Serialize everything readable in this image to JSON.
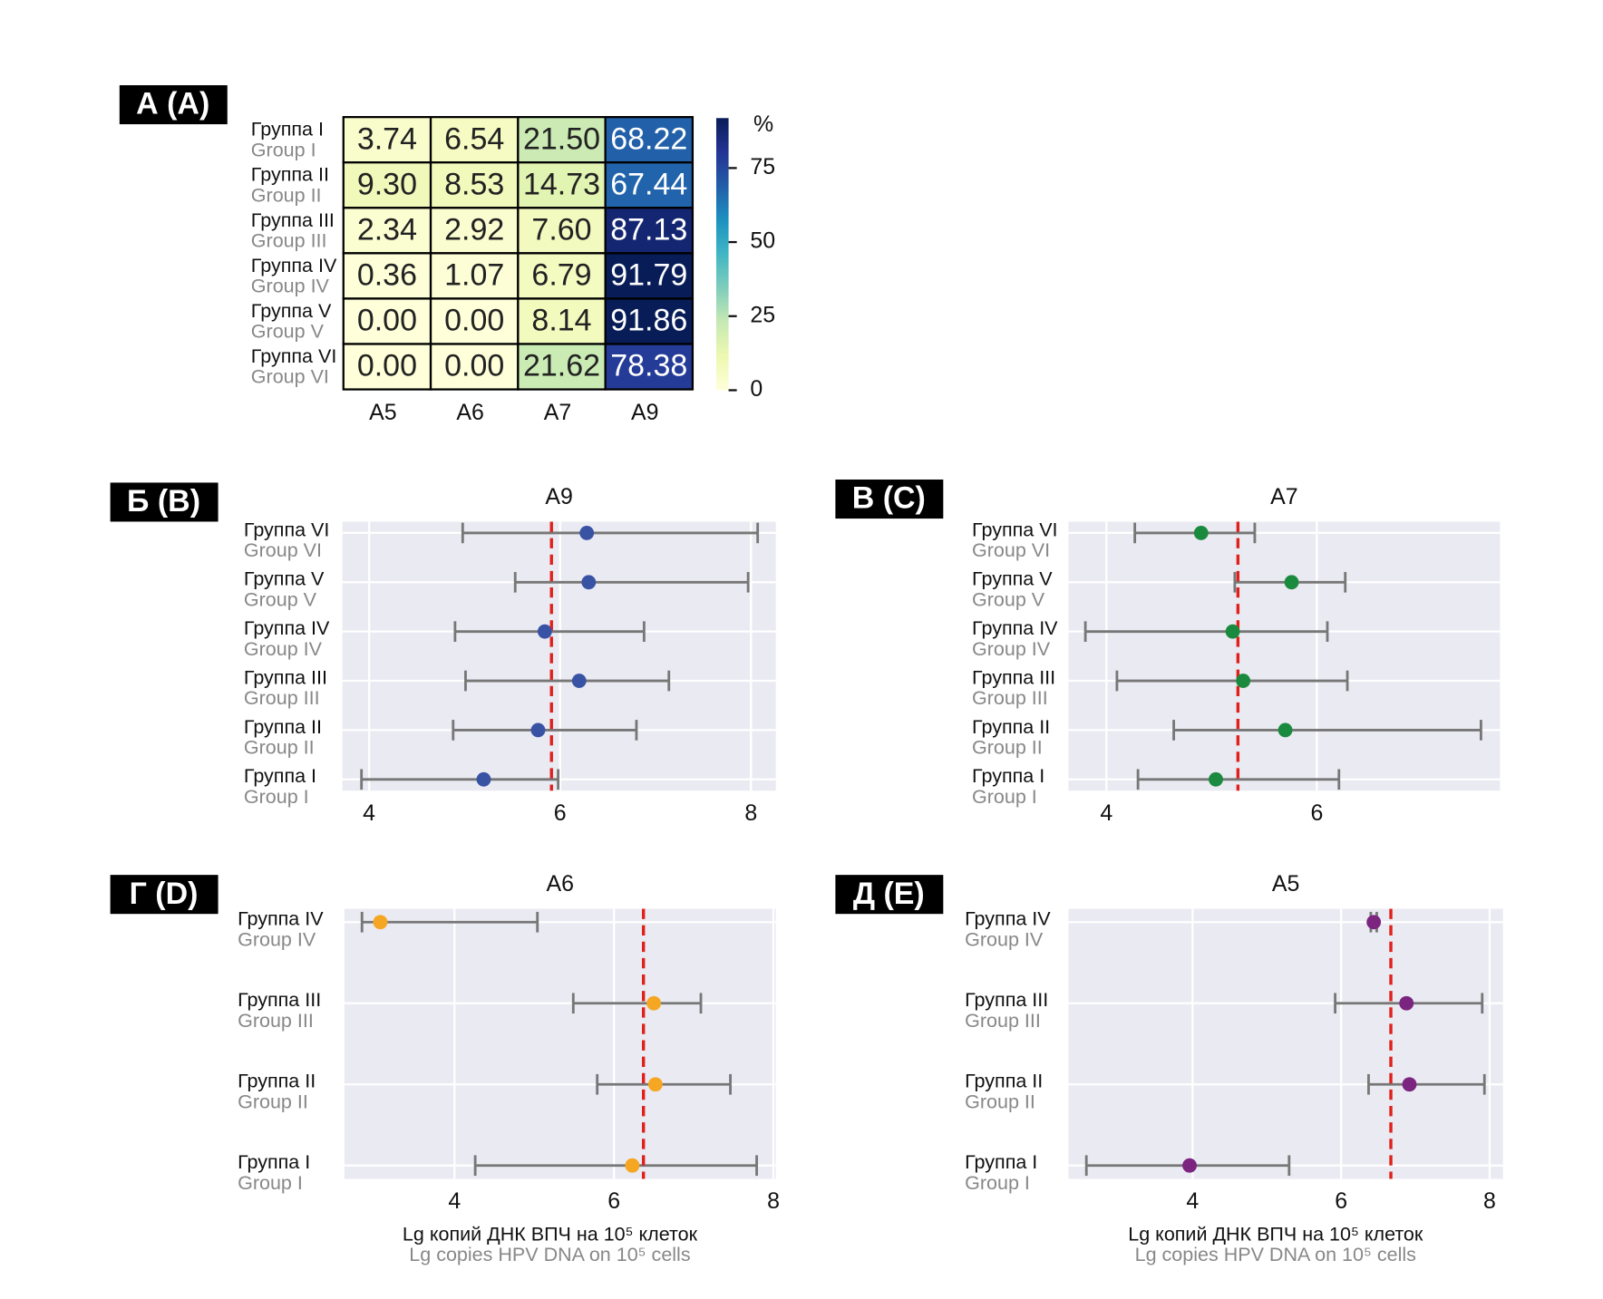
{
  "chart_data": [
    {
      "type": "heatmap",
      "panel_label": "А (A)",
      "colormap": "YlGnBu",
      "rows": [
        "Группа I",
        "Группа II",
        "Группа III",
        "Группа IV",
        "Группа V",
        "Группа VI"
      ],
      "rows_en": [
        "Group I",
        "Group II",
        "Group III",
        "Group IV",
        "Group V",
        "Group VI"
      ],
      "columns": [
        "A5",
        "A6",
        "A7",
        "A9"
      ],
      "values": [
        [
          3.74,
          6.54,
          21.5,
          68.22
        ],
        [
          9.3,
          8.53,
          14.73,
          67.44
        ],
        [
          2.34,
          2.92,
          7.6,
          87.13
        ],
        [
          0.36,
          1.07,
          6.79,
          91.79
        ],
        [
          0,
          0,
          8.14,
          91.86
        ],
        [
          0,
          0,
          21.62,
          78.38
        ]
      ],
      "value_labels": [
        [
          "3.74",
          "6.54",
          "21.50",
          "68.22"
        ],
        [
          "9.30",
          "8.53",
          "14.73",
          "67.44"
        ],
        [
          "2.34",
          "2.92",
          "7.60",
          "87.13"
        ],
        [
          "0.36",
          "1.07",
          "6.79",
          "91.79"
        ],
        [
          "0.00",
          "0.00",
          "8.14",
          "91.86"
        ],
        [
          "0.00",
          "0.00",
          "21.62",
          "78.38"
        ]
      ],
      "colorbar": {
        "label": "%",
        "lim": [
          0,
          91.86
        ],
        "ticks": [
          0,
          25,
          50,
          75
        ]
      }
    },
    {
      "type": "forest",
      "panel_label": "Б (B)",
      "title": "A9",
      "color": "#3953a4",
      "grid": true,
      "categories": [
        "Группа VI",
        "Группа V",
        "Группа IV",
        "Группа III",
        "Группа II",
        "Группа I"
      ],
      "categories_en": [
        "Group VI",
        "Group V",
        "Group IV",
        "Group III",
        "Group II",
        "Group I"
      ],
      "values": [
        6.28,
        6.3,
        5.84,
        6.2,
        5.77,
        5.2
      ],
      "lower": [
        4.98,
        5.53,
        4.9,
        5.01,
        4.88,
        3.92
      ],
      "upper": [
        8.07,
        7.97,
        6.88,
        7.14,
        6.8,
        5.98
      ],
      "reference": 5.91,
      "xlim": [
        3.72,
        8.26
      ],
      "xticks": [
        4,
        6,
        8
      ]
    },
    {
      "type": "forest",
      "panel_label": "В (C)",
      "title": "A7",
      "color": "#1a8a3e",
      "grid": true,
      "categories": [
        "Группа VI",
        "Группа V",
        "Группа IV",
        "Группа III",
        "Группа II",
        "Группа I"
      ],
      "categories_en": [
        "Group VI",
        "Group V",
        "Group IV",
        "Group III",
        "Group II",
        "Group I"
      ],
      "values": [
        4.9,
        5.76,
        5.2,
        5.3,
        5.7,
        5.04
      ],
      "lower": [
        4.27,
        5.22,
        3.8,
        4.1,
        4.64,
        4.3
      ],
      "upper": [
        5.41,
        6.27,
        6.1,
        6.29,
        7.56,
        6.21
      ],
      "reference": 5.25,
      "xlim": [
        3.64,
        7.74
      ],
      "xticks": [
        4,
        6
      ]
    },
    {
      "type": "forest",
      "panel_label": "Г (D)",
      "title": "A6",
      "color": "#f5a623",
      "grid": true,
      "categories": [
        "Группа IV",
        "Группа III",
        "Группа II",
        "Группа I"
      ],
      "categories_en": [
        "Group IV",
        "Group III",
        "Group II",
        "Group I"
      ],
      "values": [
        3.07,
        6.5,
        6.52,
        6.23
      ],
      "lower": [
        2.84,
        5.49,
        5.79,
        4.26
      ],
      "upper": [
        5.04,
        7.09,
        7.46,
        7.79
      ],
      "reference": 6.37,
      "xlim": [
        2.62,
        8.03
      ],
      "xticks": [
        4,
        6,
        8
      ],
      "xlabel": "Lg копий ДНК ВПЧ на 10⁵ клеток",
      "xlabel_en": "Lg copies HPV DNA on 10⁵ cells"
    },
    {
      "type": "forest",
      "panel_label": "Д (E)",
      "title": "A5",
      "color": "#7b2580",
      "grid": true,
      "categories": [
        "Группа IV",
        "Группа III",
        "Группа II",
        "Группа I"
      ],
      "categories_en": [
        "Group IV",
        "Group III",
        "Group II",
        "Group I"
      ],
      "values": [
        6.44,
        6.88,
        6.92,
        3.96
      ],
      "lower": [
        6.4,
        5.92,
        6.37,
        2.57
      ],
      "upper": [
        6.48,
        7.9,
        7.93,
        5.3
      ],
      "reference": 6.67,
      "xlim": [
        2.33,
        8.18
      ],
      "xticks": [
        4,
        6,
        8
      ],
      "xlabel": "Lg копий ДНК ВПЧ на 10⁵ клеток",
      "xlabel_en": "Lg copies HPV DNA on 10⁵ cells"
    }
  ]
}
